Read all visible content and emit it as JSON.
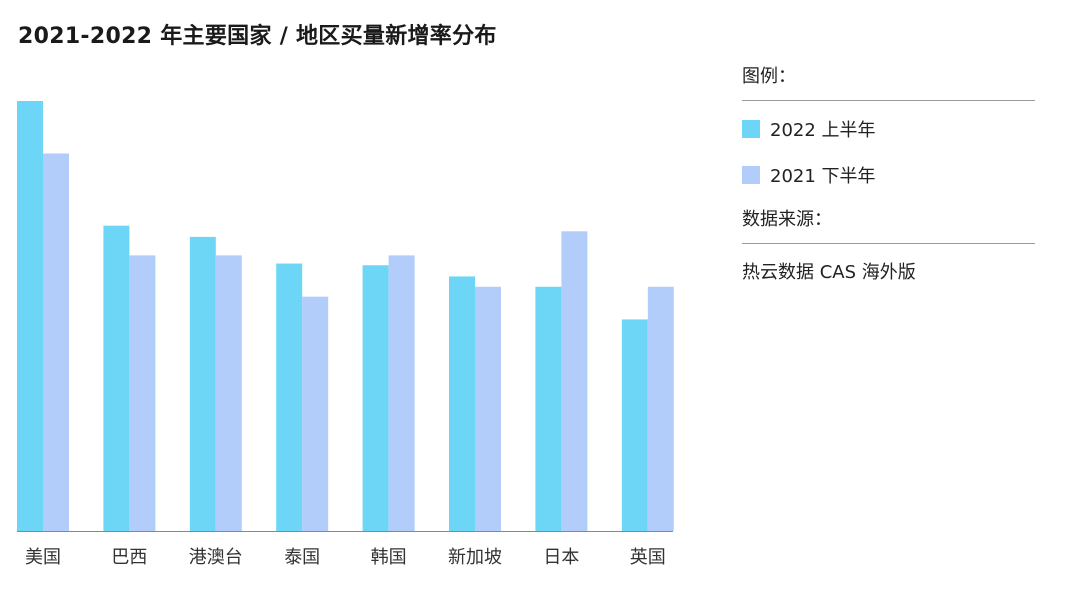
{
  "chart_data": {
    "type": "bar",
    "title": "2021-2022 年主要国家 / 地区买量新增率分布",
    "categories": [
      "美国",
      "巴西",
      "港澳台",
      "泰国",
      "韩国",
      "新加坡",
      "日本",
      "英国"
    ],
    "series": [
      {
        "name": "2022 上半年",
        "color": "#6dd6f7",
        "values": [
          100,
          71,
          68.4,
          62.2,
          61.8,
          59.2,
          56.8,
          49.2
        ]
      },
      {
        "name": "2021 下半年",
        "color": "#b3cdfb",
        "values": [
          87.8,
          64.1,
          64.1,
          54.5,
          64.1,
          56.8,
          69.7,
          56.8
        ]
      }
    ],
    "axis_color": "#888888",
    "ylim": [
      0,
      100
    ],
    "xlabel": "",
    "ylabel": "",
    "grid": false
  },
  "legend": {
    "title": "图例："
  },
  "source": {
    "title": "数据来源：",
    "text": "热云数据 CAS 海外版"
  }
}
